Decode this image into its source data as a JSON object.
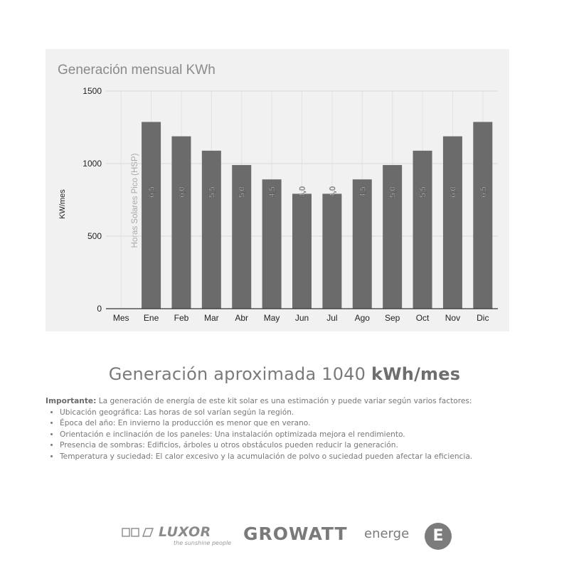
{
  "chart_data": {
    "type": "bar",
    "title": "Generación mensual KWh",
    "ylabel": "KW/mes",
    "series_label": "Horas Solares Pico (HSP)",
    "categories": [
      "Mes",
      "Ene",
      "Feb",
      "Mar",
      "Abr",
      "May",
      "Jun",
      "Jul",
      "Ago",
      "Sep",
      "Oct",
      "Nov",
      "Dic"
    ],
    "values": [
      null,
      1287,
      1188,
      1089,
      990,
      891,
      792,
      792,
      891,
      990,
      1089,
      1188,
      1287
    ],
    "bar_labels": [
      "",
      "6,5",
      "6,0",
      "5,5",
      "5,0",
      "4,5",
      "4,0",
      "4,0",
      "4,5",
      "5,0",
      "5,5",
      "6,0",
      "6,5"
    ],
    "ylim": [
      0,
      1500
    ],
    "yticks": [
      0,
      500,
      1000,
      1500
    ],
    "grid": true,
    "colors": {
      "bar": "#6b6b6b",
      "panel": "#f1f1f1",
      "grid": "#d9d9d9"
    }
  },
  "summary": {
    "prefix": "Generación aproximada",
    "value": "1040",
    "unit": "kWh/mes"
  },
  "notes": {
    "lead_label": "Importante:",
    "lead_text": "La generación de energía de este kit solar es una estimación y puede variar según varios factores:",
    "items": [
      "Ubicación geográfica: Las horas de sol varían según la región.",
      "Época del año: En invierno la producción es menor que en verano.",
      "Orientación e inclinación de los paneles: Una instalación optimizada mejora el rendimiento.",
      "Presencia de sombras: Edificios, árboles u otros obstáculos pueden reducir la generación.",
      "Temperatura y suciedad: El calor excesivo y la acumulación de polvo o suciedad pueden afectar la eficiencia."
    ]
  },
  "logos": {
    "luxor": "LUXOR",
    "luxor_tagline": "the sunshine people",
    "growatt": "GROWATT",
    "energe": "energe",
    "energe_badge": "E"
  }
}
